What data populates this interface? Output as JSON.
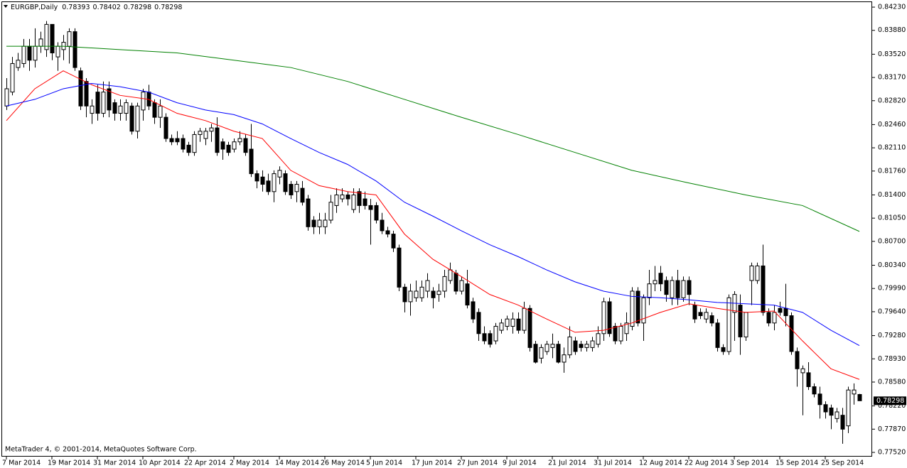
{
  "chart_data": {
    "type": "candlestick",
    "title": "EURGBP,Daily",
    "footer": "MetaTrader 4, © 2001-2014, MetaQuotes Software Corp.",
    "up_color": "#ffffff",
    "down_color": "#000000",
    "ylim": [
      0.77456,
      0.84316
    ],
    "yticks": [
      {
        "value": 0.8423,
        "label": "0.84230"
      },
      {
        "value": 0.8388,
        "label": "0.83880"
      },
      {
        "value": 0.8352,
        "label": "0.83520"
      },
      {
        "value": 0.8317,
        "label": "0.83170"
      },
      {
        "value": 0.8282,
        "label": "0.82820"
      },
      {
        "value": 0.8246,
        "label": "0.82460"
      },
      {
        "value": 0.8211,
        "label": "0.82110"
      },
      {
        "value": 0.8176,
        "label": "0.81760"
      },
      {
        "value": 0.814,
        "label": "0.81400"
      },
      {
        "value": 0.8105,
        "label": "0.81050"
      },
      {
        "value": 0.807,
        "label": "0.80700"
      },
      {
        "value": 0.8034,
        "label": "0.80340"
      },
      {
        "value": 0.7999,
        "label": "0.79990"
      },
      {
        "value": 0.7964,
        "label": "0.79640"
      },
      {
        "value": 0.7928,
        "label": "0.79280"
      },
      {
        "value": 0.7893,
        "label": "0.78930"
      },
      {
        "value": 0.7858,
        "label": "0.78580"
      },
      {
        "value": 0.7822,
        "label": "0.78220"
      },
      {
        "value": 0.7787,
        "label": "0.77870"
      },
      {
        "value": 0.7752,
        "label": "0.77520"
      }
    ],
    "xticks": [
      {
        "value": 0,
        "label": "7 Mar 2014"
      },
      {
        "value": 8,
        "label": "19 Mar 2014"
      },
      {
        "value": 16,
        "label": "31 Mar 2014"
      },
      {
        "value": 24,
        "label": "10 Apr 2014"
      },
      {
        "value": 32,
        "label": "22 Apr 2014"
      },
      {
        "value": 40,
        "label": "2 May 2014"
      },
      {
        "value": 48,
        "label": "14 May 2014"
      },
      {
        "value": 56,
        "label": "26 May 2014"
      },
      {
        "value": 64,
        "label": "5 Jun 2014"
      },
      {
        "value": 72,
        "label": "17 Jun 2014"
      },
      {
        "value": 80,
        "label": "27 Jun 2014"
      },
      {
        "value": 88,
        "label": "9 Jul 2014"
      },
      {
        "value": 96,
        "label": "21 Jul 2014"
      },
      {
        "value": 104,
        "label": "31 Jul 2014"
      },
      {
        "value": 112,
        "label": "12 Aug 2014"
      },
      {
        "value": 120,
        "label": "22 Aug 2014"
      },
      {
        "value": 128,
        "label": "3 Sep 2014"
      },
      {
        "value": 136,
        "label": "15 Sep 2014"
      },
      {
        "value": 144,
        "label": "25 Sep 2014"
      }
    ],
    "ohlc": [
      [
        0.8274,
        0.8316,
        0.8268,
        0.83
      ],
      [
        0.8295,
        0.8348,
        0.829,
        0.8338
      ],
      [
        0.8332,
        0.8354,
        0.8327,
        0.8343
      ],
      [
        0.8338,
        0.8375,
        0.8332,
        0.8364
      ],
      [
        0.8364,
        0.8375,
        0.8327,
        0.8343
      ],
      [
        0.8343,
        0.8391,
        0.8332,
        0.8364
      ],
      [
        0.8364,
        0.8386,
        0.8354,
        0.8375
      ],
      [
        0.8359,
        0.8402,
        0.8348,
        0.8397
      ],
      [
        0.8397,
        0.8397,
        0.8343,
        0.8354
      ],
      [
        0.8348,
        0.837,
        0.8327,
        0.8364
      ],
      [
        0.8359,
        0.8381,
        0.8343,
        0.837
      ],
      [
        0.8364,
        0.8391,
        0.8338,
        0.8386
      ],
      [
        0.8386,
        0.8391,
        0.8327,
        0.8332
      ],
      [
        0.8327,
        0.8332,
        0.8268,
        0.8274
      ],
      [
        0.8311,
        0.8316,
        0.8257,
        0.8274
      ],
      [
        0.8263,
        0.8284,
        0.8247,
        0.8274
      ],
      [
        0.8295,
        0.8306,
        0.8252,
        0.8263
      ],
      [
        0.8263,
        0.8311,
        0.8257,
        0.8295
      ],
      [
        0.83,
        0.8311,
        0.8257,
        0.8268
      ],
      [
        0.8279,
        0.8284,
        0.8252,
        0.8263
      ],
      [
        0.8263,
        0.8284,
        0.8252,
        0.8274
      ],
      [
        0.8263,
        0.8284,
        0.8252,
        0.8279
      ],
      [
        0.8274,
        0.8279,
        0.8231,
        0.8236
      ],
      [
        0.8236,
        0.8279,
        0.8225,
        0.8274
      ],
      [
        0.8268,
        0.83,
        0.8252,
        0.8295
      ],
      [
        0.8295,
        0.8306,
        0.8268,
        0.8274
      ],
      [
        0.8279,
        0.8284,
        0.8247,
        0.8257
      ],
      [
        0.8257,
        0.8284,
        0.8241,
        0.8274
      ],
      [
        0.8257,
        0.8263,
        0.822,
        0.8225
      ],
      [
        0.8225,
        0.8231,
        0.8215,
        0.822
      ],
      [
        0.8225,
        0.8236,
        0.8215,
        0.822
      ],
      [
        0.8225,
        0.8231,
        0.8204,
        0.8209
      ],
      [
        0.8215,
        0.822,
        0.8199,
        0.8204
      ],
      [
        0.8204,
        0.8236,
        0.8199,
        0.8231
      ],
      [
        0.8231,
        0.8241,
        0.822,
        0.8236
      ],
      [
        0.8225,
        0.8241,
        0.8215,
        0.8236
      ],
      [
        0.8236,
        0.8247,
        0.822,
        0.8241
      ],
      [
        0.8241,
        0.8257,
        0.8199,
        0.8204
      ],
      [
        0.822,
        0.8225,
        0.8193,
        0.8209
      ],
      [
        0.8215,
        0.822,
        0.8199,
        0.8204
      ],
      [
        0.8209,
        0.8225,
        0.8204,
        0.822
      ],
      [
        0.822,
        0.8236,
        0.8215,
        0.8225
      ],
      [
        0.8225,
        0.8231,
        0.8199,
        0.8204
      ],
      [
        0.8209,
        0.8247,
        0.8167,
        0.8172
      ],
      [
        0.8172,
        0.8177,
        0.815,
        0.8161
      ],
      [
        0.8167,
        0.8177,
        0.8145,
        0.8156
      ],
      [
        0.8161,
        0.8172,
        0.814,
        0.8145
      ],
      [
        0.8145,
        0.8177,
        0.8129,
        0.8172
      ],
      [
        0.8167,
        0.8183,
        0.8156,
        0.8177
      ],
      [
        0.8172,
        0.8177,
        0.814,
        0.8145
      ],
      [
        0.8156,
        0.8161,
        0.8134,
        0.814
      ],
      [
        0.8145,
        0.8161,
        0.8129,
        0.8156
      ],
      [
        0.815,
        0.8161,
        0.8124,
        0.8129
      ],
      [
        0.8134,
        0.814,
        0.8086,
        0.8092
      ],
      [
        0.8102,
        0.8108,
        0.8081,
        0.8092
      ],
      [
        0.8092,
        0.8113,
        0.8081,
        0.8102
      ],
      [
        0.8092,
        0.8113,
        0.8081,
        0.8102
      ],
      [
        0.8102,
        0.814,
        0.8097,
        0.8129
      ],
      [
        0.8124,
        0.815,
        0.8113,
        0.814
      ],
      [
        0.8134,
        0.815,
        0.8129,
        0.814
      ],
      [
        0.814,
        0.8145,
        0.8124,
        0.8134
      ],
      [
        0.8118,
        0.815,
        0.8113,
        0.814
      ],
      [
        0.8145,
        0.815,
        0.8113,
        0.8124
      ],
      [
        0.8134,
        0.8145,
        0.8118,
        0.8124
      ],
      [
        0.8124,
        0.8134,
        0.8065,
        0.8118
      ],
      [
        0.8124,
        0.8129,
        0.8097,
        0.8102
      ],
      [
        0.8102,
        0.8113,
        0.8081,
        0.8086
      ],
      [
        0.8086,
        0.8092,
        0.8076,
        0.8081
      ],
      [
        0.8081,
        0.8086,
        0.8054,
        0.806
      ],
      [
        0.806,
        0.8065,
        0.7995,
        0.8001
      ],
      [
        0.8001,
        0.8006,
        0.7963,
        0.7979
      ],
      [
        0.7979,
        0.8006,
        0.7958,
        0.7995
      ],
      [
        0.7985,
        0.8011,
        0.7979,
        0.7995
      ],
      [
        0.7985,
        0.8011,
        0.7979,
        0.8001
      ],
      [
        0.7995,
        0.8022,
        0.7985,
        0.8011
      ],
      [
        0.7995,
        0.8001,
        0.7969,
        0.7985
      ],
      [
        0.799,
        0.8006,
        0.7979,
        0.7995
      ],
      [
        0.7995,
        0.8027,
        0.7985,
        0.8017
      ],
      [
        0.8011,
        0.8038,
        0.8006,
        0.8027
      ],
      [
        0.8022,
        0.8027,
        0.799,
        0.7995
      ],
      [
        0.7995,
        0.8017,
        0.799,
        0.8011
      ],
      [
        0.8006,
        0.8027,
        0.7969,
        0.7974
      ],
      [
        0.7979,
        0.7985,
        0.7947,
        0.7953
      ],
      [
        0.7963,
        0.7969,
        0.792,
        0.7931
      ],
      [
        0.7931,
        0.7942,
        0.7915,
        0.792
      ],
      [
        0.7931,
        0.7936,
        0.791,
        0.7915
      ],
      [
        0.792,
        0.7947,
        0.7915,
        0.7942
      ],
      [
        0.7936,
        0.7953,
        0.7931,
        0.7947
      ],
      [
        0.7942,
        0.7958,
        0.7936,
        0.7953
      ],
      [
        0.7942,
        0.7963,
        0.7931,
        0.7953
      ],
      [
        0.7953,
        0.7963,
        0.7931,
        0.7936
      ],
      [
        0.7936,
        0.7979,
        0.7931,
        0.7969
      ],
      [
        0.7969,
        0.7974,
        0.7904,
        0.791
      ],
      [
        0.7915,
        0.792,
        0.7886,
        0.7888
      ],
      [
        0.7894,
        0.7915,
        0.7886,
        0.791
      ],
      [
        0.7904,
        0.792,
        0.7899,
        0.7915
      ],
      [
        0.791,
        0.7931,
        0.7894,
        0.7915
      ],
      [
        0.7915,
        0.792,
        0.7886,
        0.7888
      ],
      [
        0.7888,
        0.791,
        0.7872,
        0.7899
      ],
      [
        0.7899,
        0.7942,
        0.7894,
        0.7926
      ],
      [
        0.792,
        0.7926,
        0.7899,
        0.7904
      ],
      [
        0.7915,
        0.792,
        0.7904,
        0.791
      ],
      [
        0.791,
        0.792,
        0.7904,
        0.7915
      ],
      [
        0.791,
        0.7926,
        0.7904,
        0.792
      ],
      [
        0.7915,
        0.7942,
        0.791,
        0.7931
      ],
      [
        0.7931,
        0.7985,
        0.792,
        0.7979
      ],
      [
        0.7979,
        0.7985,
        0.7926,
        0.7931
      ],
      [
        0.7942,
        0.7947,
        0.7915,
        0.792
      ],
      [
        0.792,
        0.7947,
        0.7915,
        0.7942
      ],
      [
        0.7931,
        0.7963,
        0.792,
        0.7947
      ],
      [
        0.7942,
        0.8001,
        0.7936,
        0.7995
      ],
      [
        0.7995,
        0.8001,
        0.7942,
        0.7947
      ],
      [
        0.7947,
        0.799,
        0.792,
        0.7985
      ],
      [
        0.7985,
        0.8027,
        0.7974,
        0.8006
      ],
      [
        0.8006,
        0.8033,
        0.7995,
        0.8011
      ],
      [
        0.8022,
        0.8033,
        0.7995,
        0.8006
      ],
      [
        0.8011,
        0.8017,
        0.7979,
        0.799
      ],
      [
        0.7985,
        0.8017,
        0.7974,
        0.8011
      ],
      [
        0.8011,
        0.8027,
        0.7974,
        0.7985
      ],
      [
        0.7985,
        0.8017,
        0.7979,
        0.8011
      ],
      [
        0.8011,
        0.8017,
        0.7974,
        0.799
      ],
      [
        0.7974,
        0.7979,
        0.7947,
        0.7953
      ],
      [
        0.7963,
        0.7969,
        0.7953,
        0.7958
      ],
      [
        0.7953,
        0.7969,
        0.7947,
        0.7963
      ],
      [
        0.7958,
        0.7963,
        0.7942,
        0.7947
      ],
      [
        0.7947,
        0.7953,
        0.7904,
        0.791
      ],
      [
        0.791,
        0.7915,
        0.7899,
        0.7904
      ],
      [
        0.7904,
        0.799,
        0.7899,
        0.7985
      ],
      [
        0.7963,
        0.7995,
        0.792,
        0.799
      ],
      [
        0.7974,
        0.799,
        0.7899,
        0.7926
      ],
      [
        0.7926,
        0.7963,
        0.792,
        0.7963
      ],
      [
        0.8011,
        0.8038,
        0.7974,
        0.8033
      ],
      [
        0.8011,
        0.8038,
        0.8006,
        0.8033
      ],
      [
        0.8033,
        0.8065,
        0.7958,
        0.7963
      ],
      [
        0.7963,
        0.7969,
        0.7942,
        0.7947
      ],
      [
        0.7947,
        0.7974,
        0.7936,
        0.7963
      ],
      [
        0.7969,
        0.7979,
        0.7958,
        0.7963
      ],
      [
        0.7969,
        0.8006,
        0.7942,
        0.7958
      ],
      [
        0.7958,
        0.7963,
        0.7899,
        0.7904
      ],
      [
        0.7904,
        0.791,
        0.7851,
        0.7878
      ],
      [
        0.7872,
        0.7883,
        0.7808,
        0.7878
      ],
      [
        0.7872,
        0.7888,
        0.7846,
        0.7851
      ],
      [
        0.7851,
        0.7856,
        0.7835,
        0.784
      ],
      [
        0.784,
        0.7851,
        0.7803,
        0.7824
      ],
      [
        0.7824,
        0.7829,
        0.7803,
        0.7813
      ],
      [
        0.7819,
        0.7824,
        0.7787,
        0.7808
      ],
      [
        0.7803,
        0.7819,
        0.7797,
        0.7813
      ],
      [
        0.7808,
        0.7819,
        0.7765,
        0.7787
      ],
      [
        0.7792,
        0.7851,
        0.7781,
        0.7846
      ],
      [
        0.784,
        0.7856,
        0.7824,
        0.7846
      ],
      [
        0.78393,
        0.78402,
        0.78298,
        0.78298
      ]
    ],
    "series": [
      {
        "color": "#ff0000",
        "x": [
          0,
          5,
          10,
          15,
          20,
          25,
          30,
          35,
          40,
          45,
          50,
          55,
          60,
          65,
          70,
          75,
          80,
          85,
          90,
          95,
          100,
          105,
          110,
          115,
          120,
          125,
          130,
          135,
          140,
          145,
          150
        ],
        "values": [
          0.8252,
          0.83,
          0.8327,
          0.8306,
          0.829,
          0.8284,
          0.8263,
          0.8252,
          0.8236,
          0.8225,
          0.8177,
          0.8154,
          0.8145,
          0.814,
          0.8081,
          0.8043,
          0.8017,
          0.799,
          0.7974,
          0.7953,
          0.7933,
          0.7936,
          0.7947,
          0.7963,
          0.7976,
          0.7969,
          0.7963,
          0.7965,
          0.792,
          0.7878,
          0.7862
        ]
      },
      {
        "color": "#0000ff",
        "x": [
          0,
          5,
          10,
          15,
          20,
          25,
          30,
          35,
          40,
          45,
          50,
          55,
          60,
          65,
          70,
          75,
          80,
          85,
          90,
          95,
          100,
          105,
          110,
          115,
          120,
          125,
          130,
          135,
          140,
          145,
          150
        ],
        "values": [
          0.8274,
          0.8284,
          0.83,
          0.8308,
          0.8303,
          0.8295,
          0.8279,
          0.8268,
          0.8261,
          0.8247,
          0.8225,
          0.8204,
          0.8186,
          0.8161,
          0.8129,
          0.8108,
          0.8086,
          0.8065,
          0.8047,
          0.8027,
          0.8009,
          0.7995,
          0.7987,
          0.7985,
          0.7982,
          0.7978,
          0.7976,
          0.7974,
          0.7963,
          0.7936,
          0.7913
        ]
      },
      {
        "color": "#008000",
        "x": [
          0,
          10,
          20,
          30,
          40,
          50,
          60,
          70,
          80,
          90,
          100,
          110,
          120,
          130,
          140,
          150
        ],
        "values": [
          0.8364,
          0.8364,
          0.8359,
          0.8354,
          0.8343,
          0.8332,
          0.8311,
          0.8284,
          0.8257,
          0.8231,
          0.8204,
          0.8177,
          0.8158,
          0.814,
          0.8124,
          0.8085
        ]
      }
    ]
  }
}
